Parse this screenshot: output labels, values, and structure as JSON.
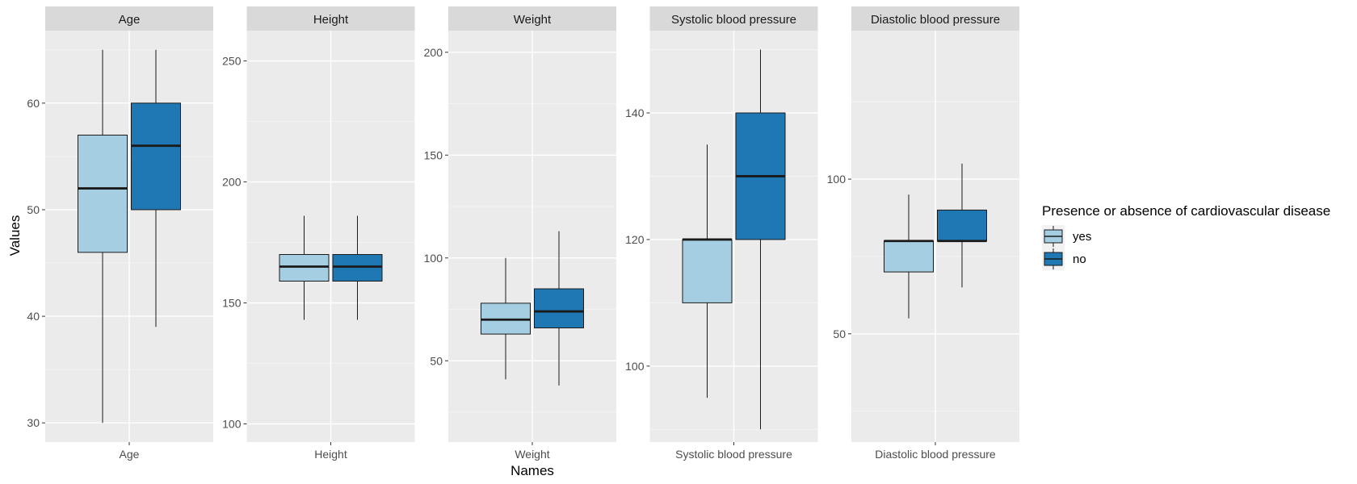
{
  "chart_data": {
    "type": "boxplot",
    "xlabel": "Names",
    "ylabel": "Values",
    "legend": {
      "title": "Presence or absence of cardiovascular disease",
      "placement": "right",
      "entries": [
        {
          "label": "yes",
          "color": "#a6cee3"
        },
        {
          "label": "no",
          "color": "#1f78b4"
        }
      ]
    },
    "panels": [
      {
        "strip": "Age",
        "category": "Age",
        "ylim": [
          28.2,
          66.8
        ],
        "yticks": [
          30,
          40,
          50,
          60
        ],
        "boxes": [
          {
            "group": "yes",
            "min": 30,
            "q1": 46,
            "median": 52,
            "q3": 57,
            "max": 65
          },
          {
            "group": "no",
            "min": 39,
            "q1": 50,
            "median": 56,
            "q3": 60,
            "max": 65
          }
        ]
      },
      {
        "strip": "Height",
        "category": "Height",
        "ylim": [
          92.5,
          262.5
        ],
        "yticks": [
          100,
          150,
          200,
          250
        ],
        "boxes": [
          {
            "group": "yes",
            "min": 143,
            "q1": 159,
            "median": 165,
            "q3": 170,
            "max": 186
          },
          {
            "group": "no",
            "min": 143,
            "q1": 159,
            "median": 165,
            "q3": 170,
            "max": 186
          }
        ]
      },
      {
        "strip": "Weight",
        "category": "Weight",
        "ylim": [
          10.5,
          210.5
        ],
        "yticks": [
          50,
          100,
          150,
          200
        ],
        "boxes": [
          {
            "group": "yes",
            "min": 41,
            "q1": 63,
            "median": 70,
            "q3": 78,
            "max": 100
          },
          {
            "group": "no",
            "min": 38,
            "q1": 66,
            "median": 74,
            "q3": 85,
            "max": 113
          }
        ]
      },
      {
        "strip": "Systolic blood pressure",
        "category": "Systolic blood pressure",
        "ylim": [
          88,
          153
        ],
        "yticks": [
          100,
          120,
          140
        ],
        "boxes": [
          {
            "group": "yes",
            "min": 95,
            "q1": 110,
            "median": 120,
            "q3": 120,
            "max": 135
          },
          {
            "group": "no",
            "min": 90,
            "q1": 120,
            "median": 130,
            "q3": 140,
            "max": 150
          }
        ]
      },
      {
        "strip": "Diastolic blood pressure",
        "category": "Diastolic blood pressure",
        "ylim": [
          15,
          148
        ],
        "yticks": [
          50,
          100
        ],
        "boxes": [
          {
            "group": "yes",
            "min": 55,
            "q1": 70,
            "median": 80,
            "q3": 80,
            "max": 95
          },
          {
            "group": "no",
            "min": 65,
            "q1": 80,
            "median": 80,
            "q3": 90,
            "max": 105
          }
        ]
      }
    ]
  }
}
